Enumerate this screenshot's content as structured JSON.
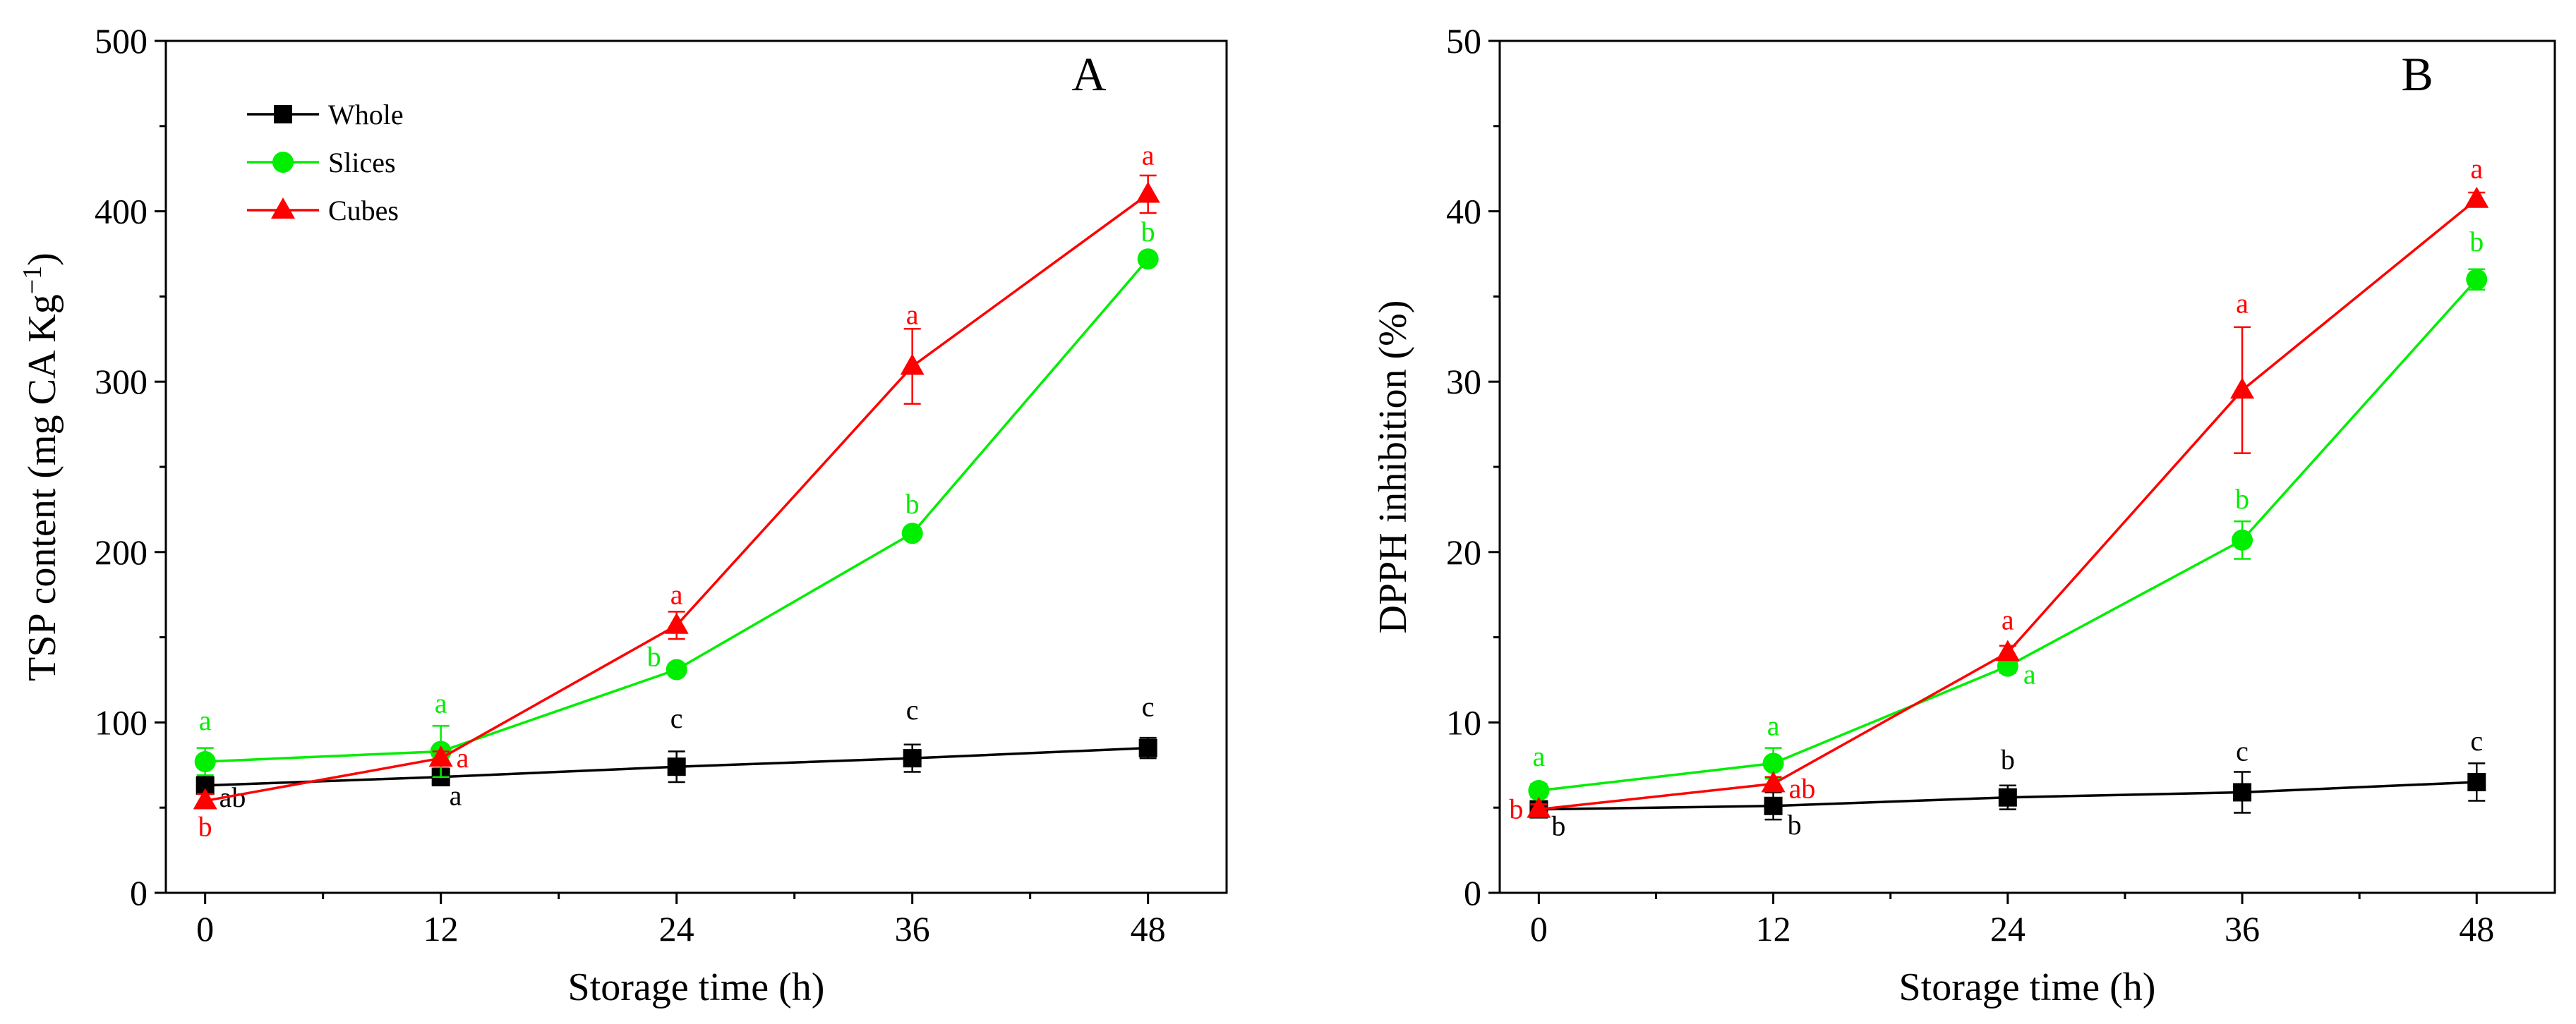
{
  "chart_data": [
    {
      "type": "line",
      "panel_label": "A",
      "xlabel": "Storage time (h)",
      "ylabel_main": "TSP content (mg CA Kg",
      "ylabel_sup": "−1",
      "ylabel_tail": ")",
      "x": [
        0,
        12,
        24,
        36,
        48
      ],
      "x_tick_labels": [
        "0",
        "12",
        "24",
        "36",
        "48"
      ],
      "xlim": [
        -2,
        52
      ],
      "ylim": [
        0,
        500
      ],
      "y_ticks": [
        0,
        100,
        200,
        300,
        400,
        500
      ],
      "y_tick_labels": [
        "0",
        "100",
        "200",
        "300",
        "400",
        "500"
      ],
      "legend_position": "top-left",
      "series": [
        {
          "name": "Whole",
          "color": "#000000",
          "marker": "square",
          "values": [
            63,
            68,
            74,
            79,
            85
          ],
          "errors": [
            5,
            5,
            9,
            8,
            6
          ],
          "letters": [
            "ab",
            "a",
            "c",
            "c",
            "c"
          ]
        },
        {
          "name": "Slices",
          "color": "#00ee00",
          "marker": "circle",
          "values": [
            77,
            83,
            131,
            211,
            372
          ],
          "errors": [
            8,
            15,
            3,
            3,
            3
          ],
          "letters": [
            "a",
            "a",
            "b",
            "b",
            "b"
          ]
        },
        {
          "name": "Cubes",
          "color": "#ff0000",
          "marker": "triangle",
          "values": [
            54,
            79,
            157,
            309,
            410
          ],
          "errors": [
            4,
            4,
            8,
            22,
            11
          ],
          "letters": [
            "b",
            "a",
            "a",
            "a",
            "a"
          ]
        }
      ]
    },
    {
      "type": "line",
      "panel_label": "B",
      "xlabel": "Storage time (h)",
      "ylabel_main": "DPPH inhibition (%)",
      "ylabel_sup": "",
      "ylabel_tail": "",
      "x": [
        0,
        12,
        24,
        36,
        48
      ],
      "x_tick_labels": [
        "0",
        "12",
        "24",
        "36",
        "48"
      ],
      "xlim": [
        -2,
        52
      ],
      "ylim": [
        0,
        50
      ],
      "y_ticks": [
        0,
        10,
        20,
        30,
        40,
        50
      ],
      "y_tick_labels": [
        "0",
        "10",
        "20",
        "30",
        "40",
        "50"
      ],
      "series": [
        {
          "name": "Whole",
          "color": "#000000",
          "marker": "square",
          "values": [
            4.9,
            5.1,
            5.6,
            5.9,
            6.5
          ],
          "errors": [
            0.3,
            0.8,
            0.7,
            1.2,
            1.1
          ],
          "letters": [
            "b",
            "b",
            "b",
            "c",
            "c"
          ]
        },
        {
          "name": "Slices",
          "color": "#00ee00",
          "marker": "circle",
          "values": [
            6.0,
            7.6,
            13.3,
            20.7,
            36.0
          ],
          "errors": [
            0.4,
            0.9,
            0.4,
            1.1,
            0.6
          ],
          "letters": [
            "a",
            "a",
            "a",
            "b",
            "b"
          ]
        },
        {
          "name": "Cubes",
          "color": "#ff0000",
          "marker": "triangle",
          "values": [
            4.9,
            6.4,
            14.1,
            29.5,
            40.7
          ],
          "errors": [
            0.3,
            0.4,
            0.4,
            3.7,
            0.4
          ],
          "letters": [
            "b",
            "ab",
            "a",
            "a",
            "a"
          ]
        }
      ]
    }
  ]
}
